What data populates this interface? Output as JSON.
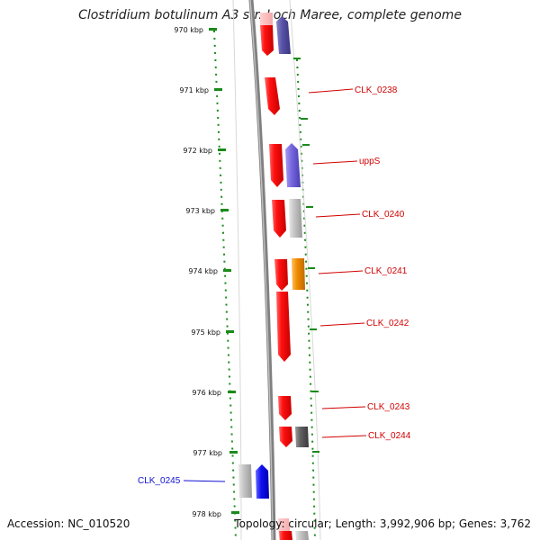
{
  "title": "Clostridium botulinum A3 str. Loch Maree, complete genome",
  "accession": "Accession: NC_010520",
  "summary": "Topology: circular; Length: 3,992,906 bp; Genes: 3,762",
  "colors": {
    "tick": "#1a8a1a",
    "backbone": "#808080",
    "forward_gene": "#ee1111",
    "reverse_gene_blue": "#7060d8",
    "grey_gene": "#b0b0b0",
    "orange_gene": "#f08c00",
    "dark_gene": "#505050",
    "label_red": "#d00000",
    "label_blue": "#1010d0"
  },
  "ticks": [
    "970 kbp",
    "971 kbp",
    "972 kbp",
    "973 kbp",
    "974 kbp",
    "975 kbp",
    "976 kbp",
    "977 kbp",
    "978 kbp"
  ],
  "gene_labels": [
    {
      "text": "CLK_0238",
      "color": "#d00000"
    },
    {
      "text": "uppS",
      "color": "#d00000"
    },
    {
      "text": "CLK_0240",
      "color": "#d00000"
    },
    {
      "text": "CLK_0241",
      "color": "#d00000"
    },
    {
      "text": "CLK_0242",
      "color": "#d00000"
    },
    {
      "text": "CLK_0243",
      "color": "#d00000"
    },
    {
      "text": "CLK_0244",
      "color": "#d00000"
    },
    {
      "text": "CLK_0245",
      "color": "#1010d0"
    }
  ]
}
